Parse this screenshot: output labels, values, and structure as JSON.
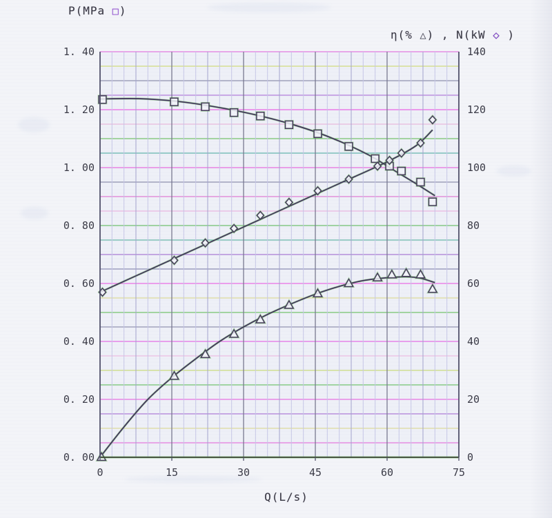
{
  "titles": {
    "left_axis": {
      "prefix": "P(MPa ",
      "marker": "□",
      "suffix": ")"
    },
    "right_axis": {
      "p1": "η(% ",
      "tri": "△",
      "p2": ") , N(kW ",
      "dia": "◇",
      "p3": " )"
    },
    "x_axis": "Q(L/s)"
  },
  "chart_data": {
    "type": "line",
    "title": "",
    "x_axis": {
      "label": "Q(L/s)",
      "min": 0,
      "max": 75,
      "tick_labels": [
        "0",
        "15",
        "30",
        "45",
        "60",
        "75"
      ]
    },
    "y_left": {
      "label": "P(MPa □)",
      "min": 0,
      "max": 1.4,
      "tick_labels_top_to_bottom": [
        "1. 40",
        "1. 20",
        "1. 00",
        "0. 80",
        "0. 60",
        "0. 40",
        "0. 20",
        "0. 00"
      ]
    },
    "y_right": {
      "label": "η(% △) , N(kW ◇ )",
      "min": 0,
      "max": 140,
      "tick_labels_top_to_bottom": [
        "140",
        "120",
        "100",
        "80",
        "60",
        "40",
        "20",
        "0"
      ]
    },
    "grid": "on",
    "legend_position": "axis-titles",
    "series": [
      {
        "name": "P (MPa)",
        "marker": "square",
        "axis": "left",
        "points": [
          [
            0.5,
            1.235
          ],
          [
            15.5,
            1.227
          ],
          [
            22,
            1.21
          ],
          [
            28,
            1.19
          ],
          [
            33.5,
            1.178
          ],
          [
            39.5,
            1.148
          ],
          [
            45.5,
            1.117
          ],
          [
            52,
            1.073
          ],
          [
            57.5,
            1.031
          ],
          [
            60.5,
            1.005
          ],
          [
            63,
            0.988
          ],
          [
            67,
            0.95
          ],
          [
            69.5,
            0.882
          ]
        ],
        "curve": [
          [
            0,
            1.237
          ],
          [
            8,
            1.238
          ],
          [
            16,
            1.229
          ],
          [
            24,
            1.21
          ],
          [
            32,
            1.184
          ],
          [
            40,
            1.15
          ],
          [
            48,
            1.105
          ],
          [
            56,
            1.045
          ],
          [
            62,
            0.985
          ],
          [
            66,
            0.945
          ],
          [
            70,
            0.903
          ]
        ]
      },
      {
        "name": "N (kW)",
        "marker": "diamond",
        "axis": "right",
        "points": [
          [
            0.5,
            57
          ],
          [
            15.5,
            68
          ],
          [
            22,
            74
          ],
          [
            28,
            79
          ],
          [
            33.5,
            83.5
          ],
          [
            39.5,
            88
          ],
          [
            45.5,
            92
          ],
          [
            52,
            96
          ],
          [
            58,
            100.5
          ],
          [
            60.5,
            102.5
          ],
          [
            63,
            105
          ],
          [
            67,
            108.5
          ],
          [
            69.5,
            116.5
          ]
        ],
        "curve": [
          [
            0,
            57
          ],
          [
            10,
            64.5
          ],
          [
            20,
            72
          ],
          [
            30,
            79.5
          ],
          [
            40,
            87
          ],
          [
            50,
            94.5
          ],
          [
            60,
            102
          ],
          [
            66,
            107.5
          ],
          [
            69.5,
            113
          ]
        ]
      },
      {
        "name": "η (%)",
        "marker": "triangle",
        "axis": "right",
        "points": [
          [
            0.3,
            0
          ],
          [
            15.5,
            28
          ],
          [
            22,
            35.5
          ],
          [
            28,
            42.5
          ],
          [
            33.5,
            47.5
          ],
          [
            39.5,
            52.5
          ],
          [
            45.5,
            56.5
          ],
          [
            52,
            60
          ],
          [
            58,
            62
          ],
          [
            61,
            63
          ],
          [
            64,
            63.5
          ],
          [
            67,
            63
          ],
          [
            69.5,
            58
          ]
        ],
        "curve": [
          [
            0,
            0
          ],
          [
            5,
            10.5
          ],
          [
            10,
            20
          ],
          [
            15,
            27.5
          ],
          [
            20,
            34
          ],
          [
            25,
            40
          ],
          [
            30,
            45
          ],
          [
            35,
            49.3
          ],
          [
            40,
            53
          ],
          [
            45,
            56.3
          ],
          [
            50,
            59
          ],
          [
            55,
            61
          ],
          [
            60,
            62
          ],
          [
            64,
            62.3
          ],
          [
            67,
            61.8
          ],
          [
            70,
            60.3
          ]
        ]
      }
    ]
  },
  "style": {
    "page_bg": "#f3f4f8",
    "plot_bg": "#eef0f7",
    "ink": "#41305c",
    "fringe_green": "#58b944",
    "marker_ink": "#453a5a",
    "marker_fill": "rgba(242,243,249,0.85)",
    "axis_line": "#50506a",
    "x_axis_line": "#3c4436",
    "label_color": "#3a3a46",
    "grid": {
      "x_step": 2.5,
      "x_semi_every": 3,
      "x_major_every": 6,
      "y_step": 0.05,
      "v_minor": "#c6c6e6",
      "v_semi": "#a2a2cc",
      "v_major": "#78788f",
      "h_colors_top_to_bottom": [
        "#e04ad8",
        "#c6d44e",
        "#6a6a92",
        "#9b4fd0",
        "#ea30e0",
        "#eba6d4",
        "#46b236",
        "#2e9e8e",
        "#e43ad6",
        "#6a6a92",
        "#de52c8",
        "#e9a0d8",
        "#3fae3a",
        "#35a08c",
        "#8f4cc8",
        "#68689a",
        "#e93ade",
        "#d6d276",
        "#44b438",
        "#6f6f96",
        "#e43ce0",
        "#efa8dc",
        "#bcd04e",
        "#42b23c",
        "#e642da",
        "#9850cc",
        "#d8d47a",
        "#e24ad4"
      ]
    }
  }
}
